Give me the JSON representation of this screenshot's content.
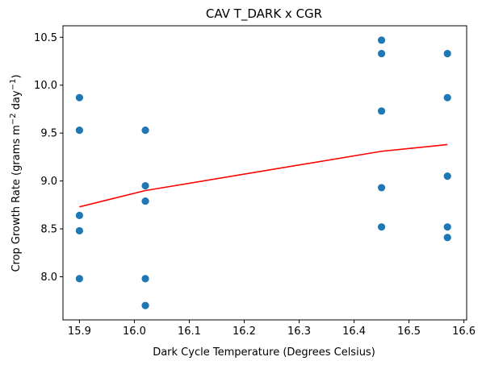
{
  "chart_data": {
    "type": "scatter",
    "title": "CAV T_DARK x CGR",
    "xlabel": "Dark Cycle Temperature (Degrees Celsius)",
    "ylabel_main": "Crop Growth Rate (grams m",
    "ylabel_exp1": "−2",
    "ylabel_mid": " day",
    "ylabel_exp2": "−1",
    "ylabel_end": ")",
    "xlim": [
      15.87,
      16.605
    ],
    "ylim": [
      7.55,
      10.62
    ],
    "xticks": [
      15.9,
      16.0,
      16.1,
      16.2,
      16.3,
      16.4,
      16.5,
      16.6
    ],
    "xtick_labels": [
      "15.9",
      "16.0",
      "16.1",
      "16.2",
      "16.3",
      "16.4",
      "16.5",
      "16.6"
    ],
    "yticks": [
      8.0,
      8.5,
      9.0,
      9.5,
      10.0,
      10.5
    ],
    "ytick_labels": [
      "8.0",
      "8.5",
      "9.0",
      "9.5",
      "10.0",
      "10.5"
    ],
    "scatter_color": "#1f77b4",
    "line_color": "#ff0000",
    "points": [
      {
        "x": 15.9,
        "y": 9.87
      },
      {
        "x": 15.9,
        "y": 9.53
      },
      {
        "x": 15.9,
        "y": 8.64
      },
      {
        "x": 15.9,
        "y": 8.48
      },
      {
        "x": 15.9,
        "y": 7.98
      },
      {
        "x": 16.02,
        "y": 9.53
      },
      {
        "x": 16.02,
        "y": 8.95
      },
      {
        "x": 16.02,
        "y": 8.79
      },
      {
        "x": 16.02,
        "y": 7.98
      },
      {
        "x": 16.02,
        "y": 7.7
      },
      {
        "x": 16.45,
        "y": 10.47
      },
      {
        "x": 16.45,
        "y": 10.33
      },
      {
        "x": 16.45,
        "y": 9.73
      },
      {
        "x": 16.45,
        "y": 8.93
      },
      {
        "x": 16.45,
        "y": 8.52
      },
      {
        "x": 16.57,
        "y": 10.33
      },
      {
        "x": 16.57,
        "y": 9.87
      },
      {
        "x": 16.57,
        "y": 9.05
      },
      {
        "x": 16.57,
        "y": 8.52
      },
      {
        "x": 16.57,
        "y": 8.41
      }
    ],
    "fit_line": [
      {
        "x": 15.9,
        "y": 8.73
      },
      {
        "x": 16.02,
        "y": 8.9
      },
      {
        "x": 16.45,
        "y": 9.31
      },
      {
        "x": 16.57,
        "y": 9.38
      }
    ]
  }
}
